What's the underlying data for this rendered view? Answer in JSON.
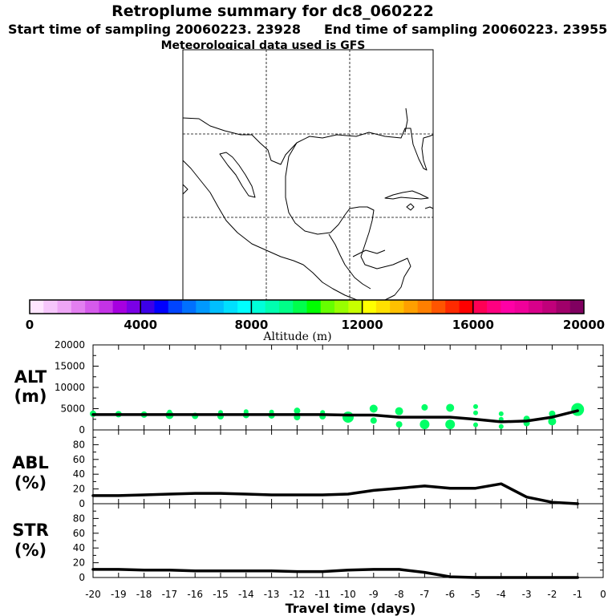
{
  "header": {
    "title": "Retroplume summary for dc8_060222",
    "start_label": "Start time of sampling 20060223. 23928",
    "end_label": "End time of sampling 20060223. 23955",
    "met_label": "Meteorological data used is GFS"
  },
  "colorbar": {
    "label": "Altitude (m)",
    "tick_labels": [
      "0",
      "4000",
      "8000",
      "12000",
      "16000",
      "20000"
    ],
    "colors": [
      "#ffe6ff",
      "#f6c6fb",
      "#eea6f6",
      "#e37ff0",
      "#d55aeb",
      "#c433e6",
      "#a600e0",
      "#7a00e6",
      "#3c00e8",
      "#0000ff",
      "#0044ff",
      "#0070ff",
      "#0099ff",
      "#00bfff",
      "#00dfff",
      "#00ffff",
      "#00ffd9",
      "#00ffb0",
      "#00ff88",
      "#00ff4c",
      "#00ff00",
      "#66ff00",
      "#99ff00",
      "#c8ff00",
      "#ffff00",
      "#ffe000",
      "#ffc000",
      "#ffa000",
      "#ff7f00",
      "#ff5500",
      "#ff2a00",
      "#ff0000",
      "#ff0055",
      "#ff0080",
      "#ff00a6",
      "#f0009a",
      "#d8008a",
      "#c0007a",
      "#a0006a",
      "#800060"
    ]
  },
  "x_axis": {
    "label": "Travel time (days)",
    "tick_labels": [
      "-20",
      "-19",
      "-18",
      "-17",
      "-16",
      "-15",
      "-14",
      "-13",
      "-12",
      "-11",
      "-10",
      "-9",
      "-8",
      "-7",
      "-6",
      "-5",
      "-4",
      "-3",
      "-2",
      "-1",
      "0"
    ]
  },
  "chart_data": [
    {
      "type": "line",
      "name": "altitude",
      "ylabel_line1": "ALT",
      "ylabel_line2": "(m)",
      "ylim": [
        0,
        20000
      ],
      "y_tick_labels": [
        "0",
        "5000",
        "10000",
        "15000",
        "20000"
      ],
      "x": [
        -20,
        -19,
        -18,
        -17,
        -16,
        -15,
        -14,
        -13,
        -12,
        -11,
        -10,
        -9,
        -8,
        -7,
        -6,
        -5,
        -4,
        -3,
        -2,
        -1
      ],
      "mean_line": [
        3600,
        3600,
        3600,
        3600,
        3600,
        3600,
        3600,
        3600,
        3600,
        3600,
        3500,
        3500,
        3000,
        3000,
        3000,
        2500,
        1900,
        2100,
        3000,
        4500
      ],
      "scatter_points": [
        {
          "x": -20,
          "y": 3800,
          "size": 4
        },
        {
          "x": -19,
          "y": 3700,
          "size": 4
        },
        {
          "x": -18,
          "y": 3600,
          "size": 4
        },
        {
          "x": -17,
          "y": 3500,
          "size": 5
        },
        {
          "x": -17,
          "y": 4200,
          "size": 3
        },
        {
          "x": -16,
          "y": 3300,
          "size": 4
        },
        {
          "x": -15,
          "y": 3200,
          "size": 4
        },
        {
          "x": -15,
          "y": 4100,
          "size": 3
        },
        {
          "x": -14,
          "y": 3500,
          "size": 4
        },
        {
          "x": -14,
          "y": 4300,
          "size": 3
        },
        {
          "x": -13,
          "y": 3400,
          "size": 4
        },
        {
          "x": -13,
          "y": 4200,
          "size": 3
        },
        {
          "x": -12,
          "y": 3000,
          "size": 4
        },
        {
          "x": -12,
          "y": 4500,
          "size": 4
        },
        {
          "x": -11,
          "y": 3200,
          "size": 4
        },
        {
          "x": -11,
          "y": 4100,
          "size": 3
        },
        {
          "x": -10,
          "y": 3000,
          "size": 7
        },
        {
          "x": -9,
          "y": 5000,
          "size": 5
        },
        {
          "x": -9,
          "y": 2200,
          "size": 4
        },
        {
          "x": -8,
          "y": 4400,
          "size": 5
        },
        {
          "x": -8,
          "y": 1300,
          "size": 4
        },
        {
          "x": -7,
          "y": 5300,
          "size": 4
        },
        {
          "x": -7,
          "y": 1300,
          "size": 6
        },
        {
          "x": -6,
          "y": 5200,
          "size": 5
        },
        {
          "x": -6,
          "y": 1300,
          "size": 6
        },
        {
          "x": -5,
          "y": 5500,
          "size": 3
        },
        {
          "x": -5,
          "y": 4000,
          "size": 3
        },
        {
          "x": -5,
          "y": 1200,
          "size": 3
        },
        {
          "x": -4,
          "y": 3800,
          "size": 3
        },
        {
          "x": -4,
          "y": 2500,
          "size": 3
        },
        {
          "x": -4,
          "y": 800,
          "size": 3
        },
        {
          "x": -3,
          "y": 2600,
          "size": 4
        },
        {
          "x": -3,
          "y": 1600,
          "size": 4
        },
        {
          "x": -2,
          "y": 3800,
          "size": 4
        },
        {
          "x": -2,
          "y": 2000,
          "size": 5
        },
        {
          "x": -1,
          "y": 4800,
          "size": 8
        }
      ],
      "point_color": "#00ff66"
    },
    {
      "type": "line",
      "name": "abl",
      "ylabel_line1": "ABL",
      "ylabel_line2": "(%)",
      "ylim": [
        0,
        100
      ],
      "y_tick_labels": [
        "0",
        "20",
        "40",
        "60",
        "80"
      ],
      "x": [
        -20,
        -19,
        -18,
        -17,
        -16,
        -15,
        -14,
        -13,
        -12,
        -11,
        -10,
        -9,
        -8,
        -7,
        -6,
        -5,
        -4,
        -3,
        -2,
        -1
      ],
      "values": [
        11,
        11,
        12,
        13,
        14,
        14,
        13,
        12,
        12,
        12,
        13,
        18,
        21,
        24,
        21,
        21,
        27,
        9,
        2,
        0
      ]
    },
    {
      "type": "line",
      "name": "str",
      "ylabel_line1": "STR",
      "ylabel_line2": "(%)",
      "ylim": [
        0,
        100
      ],
      "y_tick_labels": [
        "0",
        "20",
        "40",
        "60",
        "80"
      ],
      "x": [
        -20,
        -19,
        -18,
        -17,
        -16,
        -15,
        -14,
        -13,
        -12,
        -11,
        -10,
        -9,
        -8,
        -7,
        -6,
        -5,
        -4,
        -3,
        -2,
        -1
      ],
      "values": [
        11,
        11,
        10,
        10,
        9,
        9,
        9,
        9,
        8,
        8,
        10,
        11,
        11,
        7,
        1,
        0,
        0,
        0,
        0,
        0
      ]
    }
  ]
}
